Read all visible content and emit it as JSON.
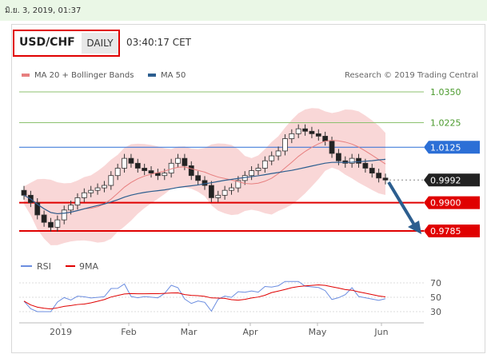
{
  "timestamp": "มิ.ย. 3, 2019, 01:37",
  "header": {
    "symbol": "USD/CHF",
    "interval": "DAILY",
    "time": "03:40:17 CET"
  },
  "legend": {
    "ma20": "MA 20 + Bollinger Bands",
    "ma50": "MA 50",
    "research": "Research © 2019 Trading Central"
  },
  "colors": {
    "ma20": "#e77f7f",
    "ma50": "#2c5e8f",
    "support": "#e00000",
    "resistance": "#8cc16f",
    "pivot": "#2c6fd6",
    "arrow": "#2c5e8f"
  },
  "price_levels": [
    {
      "label": "1.0350",
      "value": 1.035,
      "type": "resistance"
    },
    {
      "label": "1.0225",
      "value": 1.0225,
      "type": "resistance"
    },
    {
      "label": "1.0125",
      "value": 1.0125,
      "type": "pivot"
    },
    {
      "label": "0.9992",
      "value": 0.9992,
      "type": "last"
    },
    {
      "label": "0.9900",
      "value": 0.99,
      "type": "support"
    },
    {
      "label": "0.9785",
      "value": 0.9785,
      "type": "support"
    }
  ],
  "rsi": {
    "legend_rsi": "RSI",
    "legend_ma": "9MA",
    "levels": [
      {
        "label": "70",
        "value": 70
      },
      {
        "label": "50",
        "value": 50
      },
      {
        "label": "30",
        "value": 30
      }
    ]
  },
  "x_axis": [
    "2019",
    "Feb",
    "Mar",
    "Apr",
    "May",
    "Jun"
  ],
  "chart_data": {
    "type": "line",
    "title": "",
    "ylabel": "",
    "note": "daily candlestick chart, approx. closes",
    "x": [
      "Jan 1",
      "Jan 3",
      "Jan 7",
      "Jan 9",
      "Jan 11",
      "Jan 15",
      "Jan 17",
      "Jan 21",
      "Jan 23",
      "Jan 25",
      "Jan 29",
      "Jan 31",
      "Feb 4",
      "Feb 6",
      "Feb 8",
      "Feb 12",
      "Feb 14",
      "Feb 18",
      "Feb 20",
      "Feb 22",
      "Feb 26",
      "Feb 28",
      "Mar 4",
      "Mar 6",
      "Mar 8",
      "Mar 12",
      "Mar 14",
      "Mar 18",
      "Mar 20",
      "Mar 22",
      "Mar 26",
      "Mar 28",
      "Apr 1",
      "Apr 3",
      "Apr 5",
      "Apr 9",
      "Apr 11",
      "Apr 15",
      "Apr 17",
      "Apr 19",
      "Apr 23",
      "Apr 25",
      "Apr 29",
      "May 1",
      "May 3",
      "May 7",
      "May 9",
      "May 13",
      "May 15",
      "May 17",
      "May 21",
      "May 23",
      "May 27",
      "May 29",
      "May 31"
    ],
    "close": [
      0.993,
      0.99,
      0.985,
      0.982,
      0.98,
      0.983,
      0.987,
      0.989,
      0.992,
      0.994,
      0.995,
      0.996,
      0.997,
      1.001,
      1.004,
      1.008,
      1.006,
      1.004,
      1.003,
      1.002,
      1.001,
      1.002,
      1.006,
      1.008,
      1.005,
      1.001,
      0.999,
      0.997,
      0.992,
      0.993,
      0.995,
      0.996,
      0.999,
      1.001,
      1.003,
      1.004,
      1.007,
      1.009,
      1.011,
      1.016,
      1.018,
      1.02,
      1.019,
      1.018,
      1.017,
      1.015,
      1.01,
      1.007,
      1.006,
      1.008,
      1.006,
      1.004,
      1.002,
      1.0,
      0.9992
    ],
    "ylim": [
      0.974,
      1.04
    ]
  }
}
